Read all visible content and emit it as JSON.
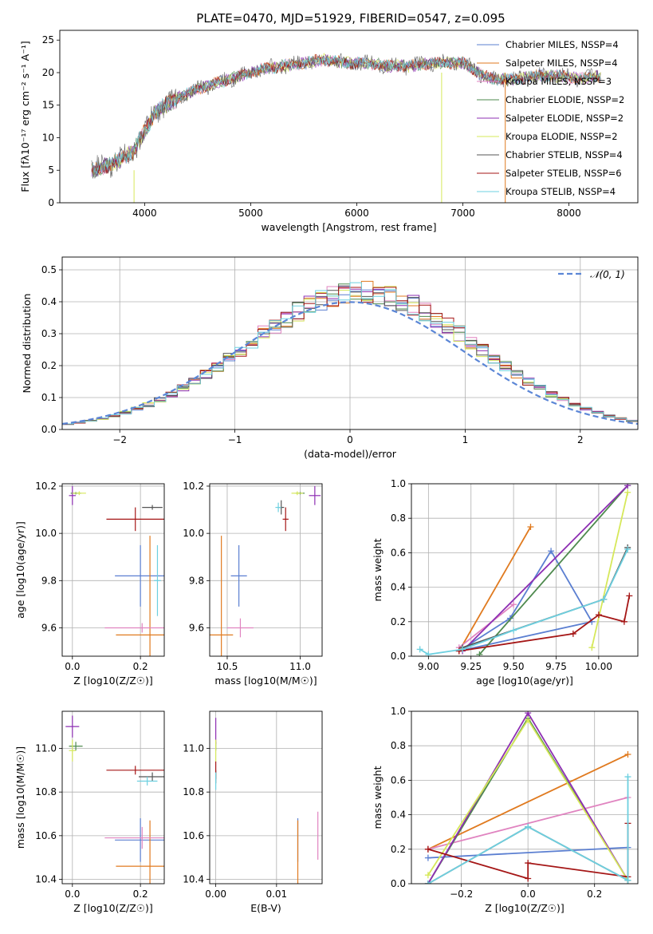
{
  "figure_title": "PLATE=0470, MJD=51929, FIBERID=0547, z=0.095",
  "colors": {
    "chabrier_miles": "#5b7fd1",
    "salpeter_miles": "#e07a1f",
    "kroupa_miles": "#e084c0",
    "chabrier_elodie": "#4e8a4e",
    "salpeter_elodie": "#8e2fb3",
    "kroupa_elodie": "#d6e85a",
    "chabrier_stelib": "#555555",
    "salpeter_stelib": "#a51616",
    "kroupa_stelib": "#6dd0e0"
  },
  "chart_data": [
    {
      "id": "spectrum",
      "type": "line",
      "title": "PLATE=0470, MJD=51929, FIBERID=0547, z=0.095",
      "xlabel": "wavelength [Angstrom, rest frame]",
      "ylabel": "Flux [fλ10⁻¹⁷ erg cm⁻² s⁻¹ A⁻¹]",
      "xlim": [
        3200,
        8650
      ],
      "ylim": [
        0,
        26.5
      ],
      "xticks": [
        4000,
        5000,
        6000,
        7000,
        8000
      ],
      "yticks": [
        0,
        5,
        10,
        15,
        20,
        25
      ],
      "grid": false,
      "legend": "top-right",
      "series": [
        {
          "name": "Chabrier MILES, NSSP=4",
          "key": "chabrier_miles"
        },
        {
          "name": "Salpeter MILES, NSSP=4",
          "key": "salpeter_miles"
        },
        {
          "name": "Kroupa MILES, NSSP=3",
          "key": "kroupa_miles"
        },
        {
          "name": "Chabrier ELODIE, NSSP=2",
          "key": "chabrier_elodie"
        },
        {
          "name": "Salpeter ELODIE, NSSP=2",
          "key": "salpeter_elodie"
        },
        {
          "name": "Kroupa ELODIE, NSSP=2",
          "key": "kroupa_elodie"
        },
        {
          "name": "Chabrier STELIB, NSSP=4",
          "key": "chabrier_stelib"
        },
        {
          "name": "Salpeter STELIB, NSSP=6",
          "key": "salpeter_stelib"
        },
        {
          "name": "Kroupa STELIB, NSSP=4",
          "key": "kroupa_stelib"
        }
      ],
      "continuum": {
        "x": [
          3500,
          3700,
          3900,
          4000,
          4100,
          4300,
          4500,
          4700,
          4900,
          5100,
          5300,
          5500,
          5700,
          5900,
          6100,
          6300,
          6500,
          6700,
          6900,
          7000,
          7100,
          7200,
          7300,
          7500,
          7700,
          7900,
          8100,
          8300
        ],
        "y": [
          5,
          6,
          8,
          11,
          14,
          16,
          17.5,
          18.5,
          19.5,
          20.5,
          21,
          21.5,
          22,
          21.5,
          21.5,
          21,
          21,
          21.5,
          21.5,
          21.5,
          20.5,
          19.5,
          19,
          19,
          19.5,
          19.5,
          19,
          19.5
        ]
      }
    },
    {
      "id": "residuals",
      "type": "line",
      "xlabel": "(data-model)/error",
      "ylabel": "Normed distribution",
      "xlim": [
        -2.5,
        2.5
      ],
      "ylim": [
        0,
        0.54
      ],
      "xticks": [
        -2,
        -1,
        0,
        1,
        2
      ],
      "yticks": [
        0.0,
        0.1,
        0.2,
        0.3,
        0.4,
        0.5
      ],
      "grid": true,
      "legend": "top-right",
      "reference": {
        "name": "𝒩(0, 1)",
        "mean": 0,
        "sigma": 1
      },
      "bin_width": 0.1
    },
    {
      "id": "age-vs-Z",
      "type": "scatter",
      "xlabel": "Z [log10(Z/Z☉)]",
      "ylabel": "age  [log10(age/yr)]",
      "xlim": [
        -0.03,
        0.27
      ],
      "ylim": [
        9.48,
        10.21
      ],
      "xticks": [
        0.0,
        0.2
      ],
      "yticks": [
        9.6,
        9.8,
        10.0,
        10.2
      ],
      "points": [
        {
          "key": "chabrier_miles",
          "x": 0.2,
          "y": 9.82,
          "xerr": 0.075,
          "yerr": 0.13
        },
        {
          "key": "salpeter_miles",
          "x": 0.228,
          "y": 9.57,
          "xerr": 0.1,
          "yerr": 0.42
        },
        {
          "key": "kroupa_miles",
          "x": 0.205,
          "y": 9.6,
          "xerr": 0.11,
          "yerr": 0.02
        },
        {
          "key": "chabrier_elodie",
          "x": 0.01,
          "y": 10.17,
          "xerr": 0.015,
          "yerr": 0.005
        },
        {
          "key": "salpeter_elodie",
          "x": 0.0,
          "y": 10.16,
          "xerr": 0.01,
          "yerr": 0.04
        },
        {
          "key": "kroupa_elodie",
          "x": 0.02,
          "y": 10.17,
          "xerr": 0.02,
          "yerr": 0.008
        },
        {
          "key": "chabrier_stelib",
          "x": 0.235,
          "y": 10.11,
          "xerr": 0.03,
          "yerr": 0.01
        },
        {
          "key": "salpeter_stelib",
          "x": 0.185,
          "y": 10.06,
          "xerr": 0.085,
          "yerr": 0.05
        },
        {
          "key": "kroupa_stelib",
          "x": 0.25,
          "y": 9.8,
          "xerr": 0.01,
          "yerr": 0.15
        }
      ]
    },
    {
      "id": "age-vs-mass",
      "type": "scatter",
      "xlabel": "mass [log10(M/M☉)]",
      "ylabel": "",
      "xlim": [
        10.38,
        11.15
      ],
      "ylim": [
        9.48,
        10.21
      ],
      "xticks": [
        10.5,
        11.0
      ],
      "yticks": [
        9.6,
        9.8,
        10.0,
        10.2
      ],
      "points": [
        {
          "key": "chabrier_miles",
          "x": 10.58,
          "y": 9.82,
          "xerr": 0.055,
          "yerr": 0.13
        },
        {
          "key": "salpeter_miles",
          "x": 10.46,
          "y": 9.57,
          "xerr": 0.08,
          "yerr": 0.42
        },
        {
          "key": "kroupa_miles",
          "x": 10.59,
          "y": 9.6,
          "xerr": 0.09,
          "yerr": 0.04
        },
        {
          "key": "chabrier_elodie",
          "x": 11.0,
          "y": 10.17,
          "xerr": 0.03,
          "yerr": 0.005
        },
        {
          "key": "salpeter_elodie",
          "x": 11.1,
          "y": 10.16,
          "xerr": 0.04,
          "yerr": 0.04
        },
        {
          "key": "kroupa_elodie",
          "x": 10.98,
          "y": 10.17,
          "xerr": 0.04,
          "yerr": 0.008
        },
        {
          "key": "chabrier_stelib",
          "x": 10.87,
          "y": 10.11,
          "xerr": 0.02,
          "yerr": 0.03
        },
        {
          "key": "salpeter_stelib",
          "x": 10.9,
          "y": 10.06,
          "xerr": 0.02,
          "yerr": 0.05
        },
        {
          "key": "kroupa_stelib",
          "x": 10.85,
          "y": 10.11,
          "xerr": 0.02,
          "yerr": 0.02
        }
      ]
    },
    {
      "id": "weight-vs-age",
      "type": "line",
      "xlabel": "age  [log10(age/yr)]",
      "ylabel": "mass weight",
      "xlim": [
        8.9,
        10.23
      ],
      "ylim": [
        0,
        1.0
      ],
      "xticks": [
        9.0,
        9.25,
        9.5,
        9.75,
        10.0
      ],
      "yticks": [
        0.0,
        0.2,
        0.4,
        0.6,
        0.8,
        1.0
      ],
      "grid": true,
      "series": [
        {
          "key": "chabrier_miles",
          "x": [
            9.18,
            9.48,
            9.72,
            9.96,
            9.18
          ],
          "y": [
            0.03,
            0.22,
            0.61,
            0.2,
            0.03
          ]
        },
        {
          "key": "salpeter_miles",
          "x": [
            9.18,
            9.6
          ],
          "y": [
            0.03,
            0.75
          ]
        },
        {
          "key": "kroupa_miles",
          "x": [
            9.18,
            9.5
          ],
          "y": [
            0.05,
            0.3
          ]
        },
        {
          "key": "chabrier_elodie",
          "x": [
            9.3,
            10.17
          ],
          "y": [
            0.01,
            0.99
          ]
        },
        {
          "key": "salpeter_elodie",
          "x": [
            9.2,
            10.17
          ],
          "y": [
            0.03,
            0.99
          ]
        },
        {
          "key": "kroupa_elodie",
          "x": [
            9.96,
            10.17
          ],
          "y": [
            0.05,
            0.95
          ]
        },
        {
          "key": "chabrier_stelib",
          "x": [
            9.2,
            10.03,
            10.17
          ],
          "y": [
            0.05,
            0.33,
            0.63
          ]
        },
        {
          "key": "salpeter_stelib",
          "x": [
            9.18,
            9.85,
            10.0,
            10.15,
            10.18
          ],
          "y": [
            0.03,
            0.13,
            0.24,
            0.2,
            0.35
          ]
        },
        {
          "key": "kroupa_stelib",
          "x": [
            8.95,
            9.0,
            9.2,
            9.5,
            10.03,
            10.17
          ],
          "y": [
            0.04,
            0.01,
            0.04,
            0.15,
            0.33,
            0.62
          ]
        }
      ]
    },
    {
      "id": "mass-vs-Z",
      "type": "scatter",
      "xlabel": "Z [log10(Z/Z☉)]",
      "ylabel": "mass [log10(M/M☉)]",
      "xlim": [
        -0.03,
        0.27
      ],
      "ylim": [
        10.38,
        11.17
      ],
      "xticks": [
        0.0,
        0.2
      ],
      "yticks": [
        10.4,
        10.6,
        10.8,
        11.0
      ],
      "points": [
        {
          "key": "chabrier_miles",
          "x": 0.2,
          "y": 10.58,
          "xerr": 0.075,
          "yerr": 0.1
        },
        {
          "key": "salpeter_miles",
          "x": 0.228,
          "y": 10.46,
          "xerr": 0.1,
          "yerr": 0.21
        },
        {
          "key": "kroupa_miles",
          "x": 0.205,
          "y": 10.59,
          "xerr": 0.11,
          "yerr": 0.05
        },
        {
          "key": "chabrier_elodie",
          "x": 0.01,
          "y": 11.01,
          "xerr": 0.02,
          "yerr": 0.02
        },
        {
          "key": "salpeter_elodie",
          "x": 0.0,
          "y": 11.1,
          "xerr": 0.02,
          "yerr": 0.05
        },
        {
          "key": "kroupa_elodie",
          "x": 0.0,
          "y": 10.99,
          "xerr": 0.01,
          "yerr": 0.05
        },
        {
          "key": "chabrier_stelib",
          "x": 0.235,
          "y": 10.87,
          "xerr": 0.04,
          "yerr": 0.02
        },
        {
          "key": "salpeter_stelib",
          "x": 0.185,
          "y": 10.9,
          "xerr": 0.085,
          "yerr": 0.02
        },
        {
          "key": "kroupa_stelib",
          "x": 0.22,
          "y": 10.85,
          "xerr": 0.03,
          "yerr": 0.02
        }
      ]
    },
    {
      "id": "mass-vs-EBV",
      "type": "scatter",
      "xlabel": "E(B-V)",
      "ylabel": "",
      "xlim": [
        -0.001,
        0.0175
      ],
      "ylim": [
        10.38,
        11.17
      ],
      "xticks": [
        0.0,
        0.01
      ],
      "tick_labels": [
        "0.00",
        "0.01"
      ],
      "yticks": [
        10.4,
        10.6,
        10.8,
        11.0
      ],
      "points": [
        {
          "key": "chabrier_miles",
          "x": 0.0135,
          "y": 10.58,
          "xerr": 0,
          "yerr": 0.1
        },
        {
          "key": "salpeter_miles",
          "x": 0.0135,
          "y": 10.46,
          "xerr": 0,
          "yerr": 0.21
        },
        {
          "key": "kroupa_miles",
          "x": 0.0168,
          "y": 10.6,
          "xerr": 0,
          "yerr": 0.11
        },
        {
          "key": "chabrier_elodie",
          "x": 0.0,
          "y": 11.01,
          "xerr": 0,
          "yerr": 0.02
        },
        {
          "key": "salpeter_elodie",
          "x": 0.0,
          "y": 11.08,
          "xerr": 0,
          "yerr": 0.06
        },
        {
          "key": "kroupa_elodie",
          "x": 0.0,
          "y": 10.99,
          "xerr": 0,
          "yerr": 0.05
        },
        {
          "key": "chabrier_stelib",
          "x": 0.0,
          "y": 10.87,
          "xerr": 0,
          "yerr": 0.03
        },
        {
          "key": "salpeter_stelib",
          "x": 0.0,
          "y": 10.9,
          "xerr": 0,
          "yerr": 0.04
        },
        {
          "key": "kroupa_stelib",
          "x": 0.0,
          "y": 10.85,
          "xerr": 0,
          "yerr": 0.04
        }
      ]
    },
    {
      "id": "weight-vs-Z",
      "type": "line",
      "xlabel": "Z [log10(Z/Z☉)]",
      "ylabel": "mass weight",
      "xlim": [
        -0.35,
        0.33
      ],
      "ylim": [
        0,
        1.0
      ],
      "xticks": [
        -0.2,
        0.0,
        0.2
      ],
      "yticks": [
        0.0,
        0.2,
        0.4,
        0.6,
        0.8,
        1.0
      ],
      "grid": true,
      "series": [
        {
          "key": "chabrier_miles",
          "x": [
            -0.3,
            0.3
          ],
          "y": [
            0.15,
            0.21
          ]
        },
        {
          "key": "salpeter_miles",
          "x": [
            -0.3,
            0.3
          ],
          "y": [
            0.2,
            0.75
          ]
        },
        {
          "key": "kroupa_miles",
          "x": [
            -0.3,
            0.3
          ],
          "y": [
            0.2,
            0.5
          ]
        },
        {
          "key": "chabrier_elodie",
          "x": [
            -0.3,
            0.0,
            0.3
          ],
          "y": [
            0.0,
            0.96,
            0.02
          ]
        },
        {
          "key": "salpeter_elodie",
          "x": [
            -0.3,
            0.0,
            0.3
          ],
          "y": [
            0.0,
            0.99,
            0.02
          ]
        },
        {
          "key": "kroupa_elodie",
          "x": [
            -0.3,
            0.0,
            0.3
          ],
          "y": [
            0.05,
            0.95,
            0.02
          ]
        },
        {
          "key": "chabrier_stelib",
          "x": [
            -0.3,
            0.0,
            0.3
          ],
          "y": [
            0.0,
            0.33,
            0.02
          ]
        },
        {
          "key": "salpeter_stelib",
          "x": [
            -0.3,
            0.0,
            0.0,
            0.3,
            0.3
          ],
          "y": [
            0.2,
            0.03,
            0.12,
            0.04,
            0.35
          ]
        },
        {
          "key": "kroupa_stelib",
          "x": [
            -0.3,
            0.0,
            0.3,
            0.3
          ],
          "y": [
            0.0,
            0.33,
            0.02,
            0.62
          ]
        }
      ]
    }
  ]
}
